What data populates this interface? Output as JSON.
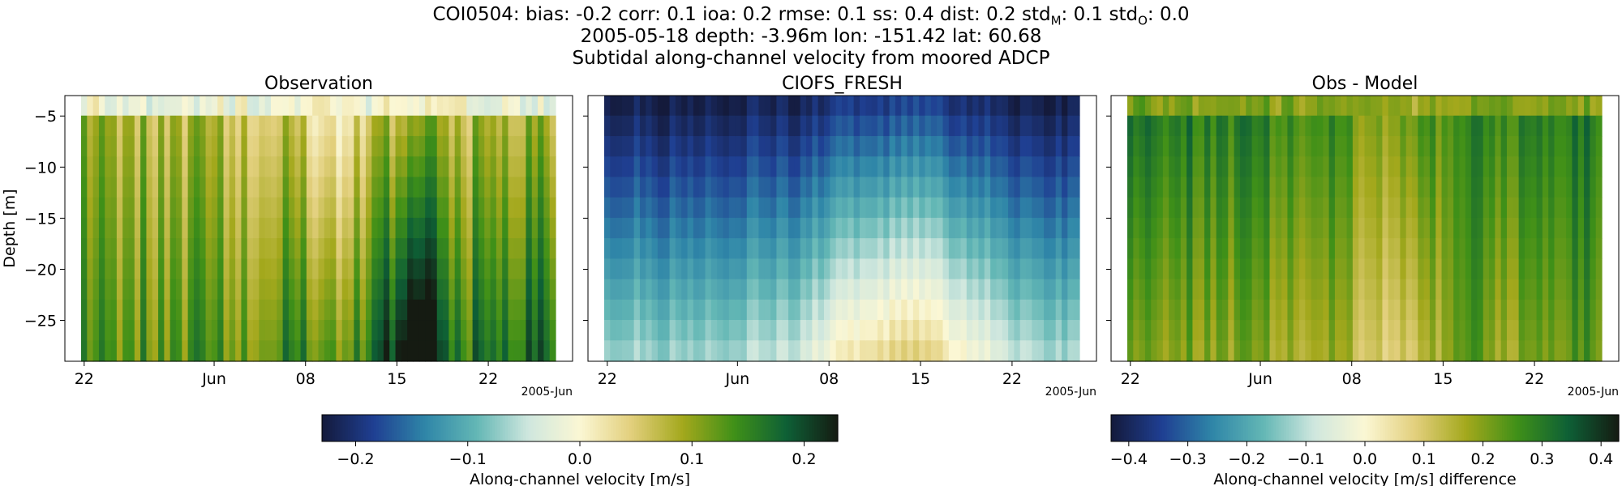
{
  "header": {
    "line1_station": "COI0504: bias: -0.2  corr: 0.1  ioa: 0.2  rmse: 0.1  ss: 0.4  dist: 0.2  std",
    "line1_std_m_sub": "M",
    "line1_std_m_val": ": 0.1  std",
    "line1_std_o_sub": "O",
    "line1_std_o_val": ": 0.0",
    "line2": "2005-05-18 depth: -3.96m lon: -151.42 lat: 60.68",
    "line3": "Subtidal along-channel velocity from moored ADCP"
  },
  "chart_data": [
    {
      "type": "heatmap",
      "title": "Observation",
      "ylabel": "Depth [m]",
      "ylim": [
        -29,
        -3
      ],
      "yticks": [
        -5,
        -10,
        -15,
        -20,
        -25
      ],
      "xticks": [
        "22",
        "Jun",
        "08",
        "15",
        "22"
      ],
      "x_offset_label": "2005-Jun",
      "x_range": [
        "2005-05-19",
        "2005-06-28"
      ],
      "depth_bins": [
        -3.96,
        -5.96,
        -7.96,
        -9.96,
        -11.96,
        -13.96,
        -15.96,
        -17.96,
        -19.96,
        -21.96,
        -23.96,
        -25.96,
        -27.96
      ],
      "time_bins": 80,
      "value_summary": {
        "surface_bin": -0.01,
        "mid_column_mean": 0.08,
        "late_near_bottom": 0.17,
        "peak_around_jun_13_18": 0.03
      },
      "colormap": "topo diverging (navy-blue-teal-white-cream-olive-green-black)"
    },
    {
      "type": "heatmap",
      "title": "CIOFS_FRESH",
      "ylim": [
        -29,
        -3
      ],
      "xticks": [
        "22",
        "Jun",
        "08",
        "15",
        "22"
      ],
      "x_offset_label": "2005-Jun",
      "x_range": [
        "2005-05-19",
        "2005-06-28"
      ],
      "value_summary": {
        "surface_min": -0.23,
        "near_bottom_max_around_jun_15": -0.01,
        "mid_column_mean": -0.11
      },
      "colormap": "topo diverging (navy-blue-teal-white-cream-olive-green-black)"
    },
    {
      "type": "heatmap",
      "title": "Obs - Model",
      "ylim": [
        -29,
        -3
      ],
      "xticks": [
        "22",
        "Jun",
        "08",
        "15",
        "22"
      ],
      "x_offset_label": "2005-Jun",
      "x_range": [
        "2005-05-19",
        "2005-06-28"
      ],
      "value_summary": {
        "surface_max": 0.41,
        "mid_column_mean": 0.24,
        "near_bottom_mean": 0.14
      },
      "colormap": "topo diverging (navy-blue-teal-white-cream-olive-green-black)"
    }
  ],
  "colorbars": [
    {
      "label": "Along-channel velocity [m/s]",
      "range": [
        -0.23,
        0.23
      ],
      "ticks": [
        -0.2,
        -0.1,
        0.0,
        0.1,
        0.2
      ],
      "tick_labels": [
        "−0.2",
        "−0.1",
        "0.0",
        "0.1",
        "0.2"
      ]
    },
    {
      "label": "Along-channel velocity [m/s] difference",
      "range": [
        -0.43,
        0.43
      ],
      "ticks": [
        -0.4,
        -0.3,
        -0.2,
        -0.1,
        0.0,
        0.1,
        0.2,
        0.3,
        0.4
      ],
      "tick_labels": [
        "−0.4",
        "−0.3",
        "−0.2",
        "−0.1",
        "0.0",
        "0.1",
        "0.2",
        "0.3",
        "0.4"
      ]
    }
  ],
  "colors": {
    "cmap_stops": [
      "#141a3b",
      "#1f3f92",
      "#2f86a8",
      "#63b7b5",
      "#cfe7de",
      "#fbf7d4",
      "#e2cf7c",
      "#a3a81c",
      "#3f9018",
      "#0e6036",
      "#151b12"
    ]
  }
}
